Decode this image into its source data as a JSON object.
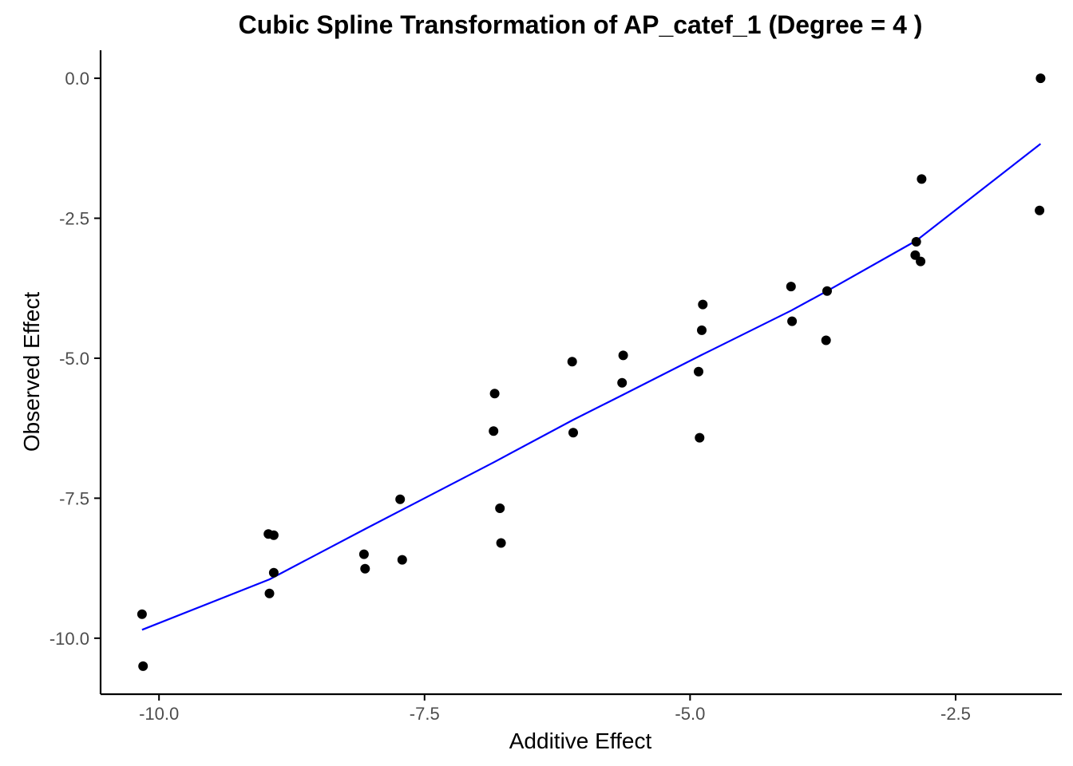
{
  "chart_data": {
    "type": "scatter",
    "title": "Cubic Spline Transformation of AP_catef_1 (Degree = 4 )",
    "xlabel": "Additive Effect",
    "ylabel": "Observed Effect",
    "xlim": [
      -10.55,
      -1.5
    ],
    "ylim": [
      -11.0,
      0.5
    ],
    "x_ticks": [
      -10.0,
      -7.5,
      -5.0,
      -2.5
    ],
    "x_tick_labels": [
      "-10.0",
      "-7.5",
      "-5.0",
      "-2.5"
    ],
    "y_ticks": [
      0.0,
      -2.5,
      -5.0,
      -7.5,
      -10.0
    ],
    "y_tick_labels": [
      "0.0",
      "-2.5",
      "-5.0",
      "-7.5",
      "-10.0"
    ],
    "grid": false,
    "legend": "none",
    "colors": {
      "points": "#000000",
      "line": "#0000ff",
      "axes": "#000000",
      "tick_labels": "#4d4d4d"
    },
    "series": [
      {
        "type": "scatter",
        "points": [
          {
            "x": -10.16,
            "y": -9.57
          },
          {
            "x": -10.15,
            "y": -10.5
          },
          {
            "x": -8.97,
            "y": -8.14
          },
          {
            "x": -8.92,
            "y": -8.16
          },
          {
            "x": -8.96,
            "y": -9.2
          },
          {
            "x": -8.92,
            "y": -8.83
          },
          {
            "x": -8.07,
            "y": -8.5
          },
          {
            "x": -8.06,
            "y": -8.76
          },
          {
            "x": -7.73,
            "y": -7.52
          },
          {
            "x": -7.71,
            "y": -8.6
          },
          {
            "x": -6.84,
            "y": -5.63
          },
          {
            "x": -6.85,
            "y": -6.3
          },
          {
            "x": -6.79,
            "y": -7.68
          },
          {
            "x": -6.78,
            "y": -8.3
          },
          {
            "x": -6.11,
            "y": -5.06
          },
          {
            "x": -6.1,
            "y": -6.33
          },
          {
            "x": -5.63,
            "y": -4.95
          },
          {
            "x": -5.64,
            "y": -5.44
          },
          {
            "x": -4.92,
            "y": -5.24
          },
          {
            "x": -4.91,
            "y": -6.42
          },
          {
            "x": -4.89,
            "y": -4.5
          },
          {
            "x": -4.88,
            "y": -4.04
          },
          {
            "x": -4.05,
            "y": -3.72
          },
          {
            "x": -4.04,
            "y": -4.34
          },
          {
            "x": -3.71,
            "y": -3.8
          },
          {
            "x": -3.72,
            "y": -4.68
          },
          {
            "x": -2.87,
            "y": -2.92
          },
          {
            "x": -2.88,
            "y": -3.16
          },
          {
            "x": -2.83,
            "y": -3.27
          },
          {
            "x": -2.82,
            "y": -1.8
          },
          {
            "x": -1.7,
            "y": 0.0
          },
          {
            "x": -1.71,
            "y": -2.36
          }
        ]
      },
      {
        "type": "line",
        "points": [
          {
            "x": -10.16,
            "y": -9.85
          },
          {
            "x": -8.96,
            "y": -8.95
          },
          {
            "x": -8.06,
            "y": -8.05
          },
          {
            "x": -6.84,
            "y": -6.85
          },
          {
            "x": -6.1,
            "y": -6.1
          },
          {
            "x": -5.63,
            "y": -5.65
          },
          {
            "x": -4.9,
            "y": -4.95
          },
          {
            "x": -4.05,
            "y": -4.15
          },
          {
            "x": -3.71,
            "y": -3.8
          },
          {
            "x": -2.87,
            "y": -2.9
          },
          {
            "x": -1.7,
            "y": -1.17
          }
        ]
      }
    ]
  }
}
